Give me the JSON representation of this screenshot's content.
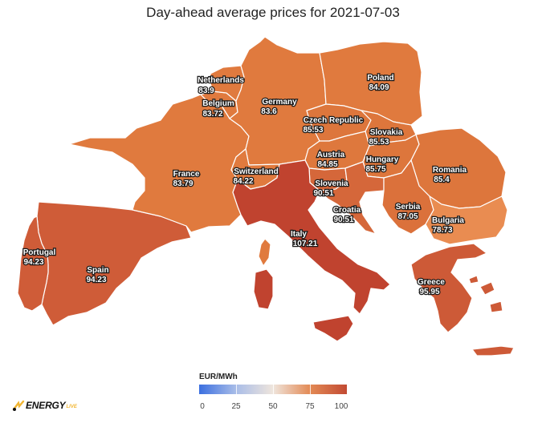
{
  "title": "Day-ahead average prices for 2021-07-03",
  "countries": [
    {
      "key": "netherlands",
      "name": "Netherlands",
      "price": "83.9",
      "color": "#e07a3e"
    },
    {
      "key": "belgium",
      "name": "Belgium",
      "price": "83.72",
      "color": "#e07a3e"
    },
    {
      "key": "germany",
      "name": "Germany",
      "price": "83.6",
      "color": "#e07a3e"
    },
    {
      "key": "poland",
      "name": "Poland",
      "price": "84.09",
      "color": "#e07a3e"
    },
    {
      "key": "czech",
      "name": "Czech Republic",
      "price": "85.53",
      "color": "#dd763c"
    },
    {
      "key": "slovakia",
      "name": "Slovakia",
      "price": "85.53",
      "color": "#dd763c"
    },
    {
      "key": "austria",
      "name": "Austria",
      "price": "84.85",
      "color": "#de783d"
    },
    {
      "key": "hungary",
      "name": "Hungary",
      "price": "85.75",
      "color": "#dd763c"
    },
    {
      "key": "romania",
      "name": "Romania",
      "price": "85.4",
      "color": "#dd763c"
    },
    {
      "key": "france",
      "name": "France",
      "price": "83.79",
      "color": "#e07a3e"
    },
    {
      "key": "switzerland",
      "name": "Switzerland",
      "price": "84.22",
      "color": "#e07a3e"
    },
    {
      "key": "slovenia",
      "name": "Slovenia",
      "price": "90.51",
      "color": "#d5673a"
    },
    {
      "key": "croatia",
      "name": "Croatia",
      "price": "90.51",
      "color": "#d5673a"
    },
    {
      "key": "serbia",
      "name": "Serbia",
      "price": "87.05",
      "color": "#db713b"
    },
    {
      "key": "bulgaria",
      "name": "Bulgaria",
      "price": "78.73",
      "color": "#e98c51"
    },
    {
      "key": "italy",
      "name": "Italy",
      "price": "107.21",
      "color": "#c0432f"
    },
    {
      "key": "portugal",
      "name": "Portugal",
      "price": "94.23",
      "color": "#cf5c38"
    },
    {
      "key": "spain",
      "name": "Spain",
      "price": "94.23",
      "color": "#cf5c38"
    },
    {
      "key": "greece",
      "name": "Greece",
      "price": "95.95",
      "color": "#cd5a37"
    }
  ],
  "legend": {
    "title": "EUR/MWh",
    "ticks": [
      "0",
      "25",
      "50",
      "75",
      "100"
    ],
    "colors": [
      "#3b6fe0",
      "#a9bde8",
      "#efe5dc",
      "#e38a55",
      "#c24a33"
    ]
  },
  "logo": {
    "text": "ENERGY",
    "sub": "LIVE",
    "accent_color": "#f2b632"
  }
}
